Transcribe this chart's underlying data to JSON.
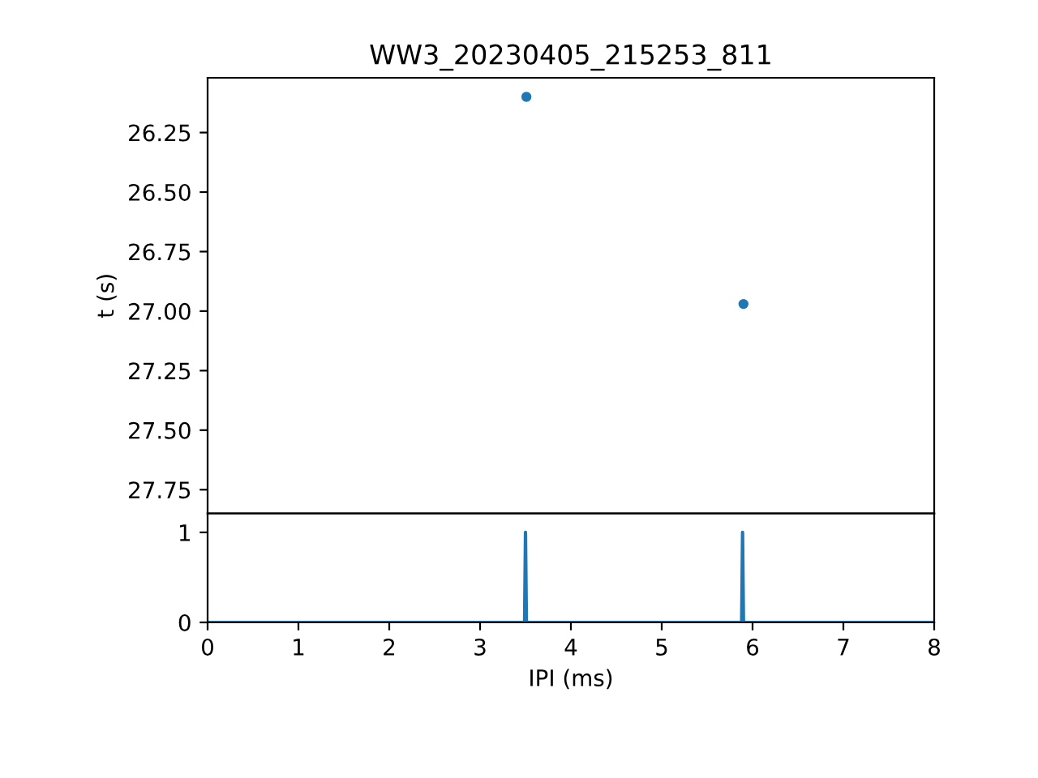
{
  "chart_data": [
    {
      "type": "scatter",
      "title": "WW3_20230405_215253_811",
      "ylabel": "t (s)",
      "x": [
        3.51,
        5.9
      ],
      "values": [
        26.1,
        26.97
      ],
      "color": "#1f77b4",
      "marker": "circle",
      "xlim": [
        0,
        8
      ],
      "ylim": [
        27.85,
        26.02
      ],
      "yticks": [
        26.25,
        {
          "value": 26.5,
          "label": "26.50"
        },
        26.75,
        {
          "value": 27.0,
          "label": "27.00"
        },
        27.25,
        {
          "value": 27.5,
          "label": "27.50"
        },
        27.75
      ],
      "tick_labels": "y"
    },
    {
      "type": "line",
      "xlabel": "IPI (ms)",
      "x": [
        0,
        3.49,
        3.5,
        3.51,
        5.88,
        5.89,
        5.9,
        8
      ],
      "values": [
        0,
        0,
        1,
        0,
        0,
        1,
        0,
        0
      ],
      "color": "#1f77b4",
      "xlim": [
        0,
        8
      ],
      "xticks": [
        0,
        1,
        2,
        3,
        4,
        5,
        6,
        7,
        8
      ],
      "ylim": [
        0,
        1.21
      ],
      "yticks": [
        0,
        1
      ]
    }
  ]
}
